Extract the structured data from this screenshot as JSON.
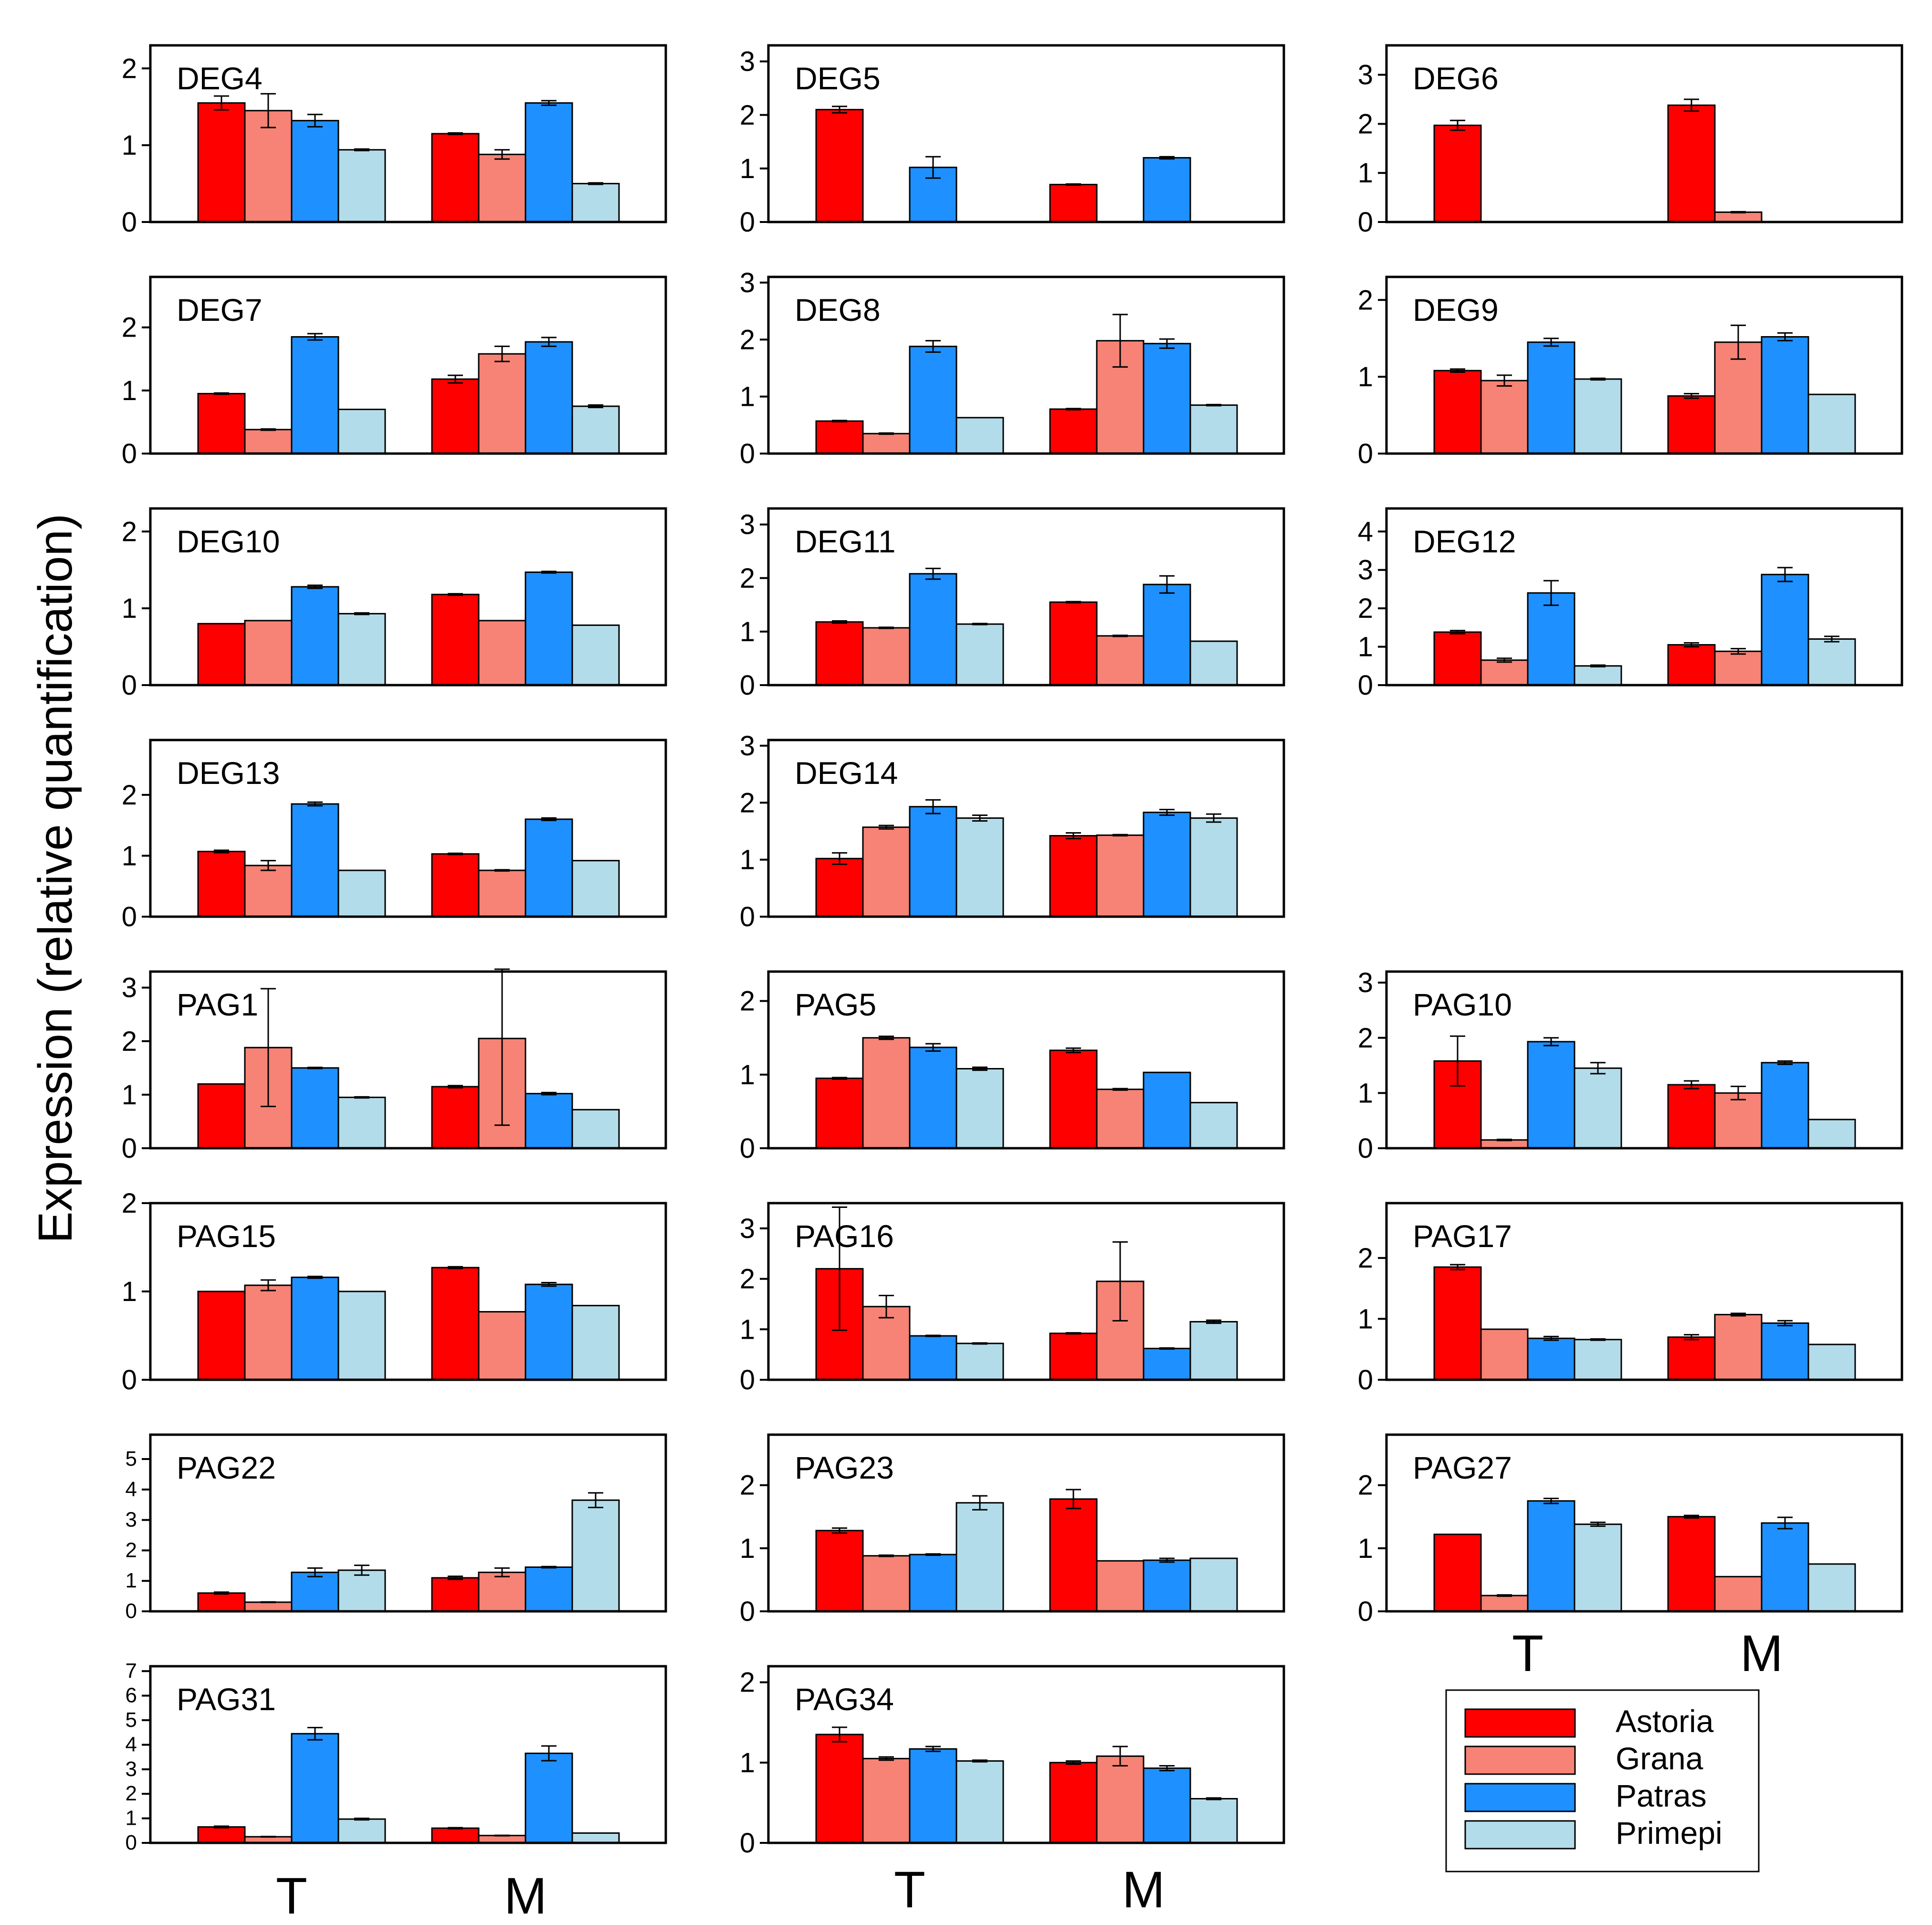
{
  "chart_data": {
    "type": "bar",
    "ylabel": "Expression (relative quantification)",
    "categories": [
      "T",
      "M"
    ],
    "series_names": [
      "Astoria",
      "Grana",
      "Patras",
      "Primepi"
    ],
    "colors": {
      "Astoria": "#ff0000",
      "Grana": "#f68375",
      "Patras": "#1e90ff",
      "Primepi": "#b3dcea"
    },
    "legend": {
      "position": "bottom-right",
      "entries": [
        "Astoria",
        "Grana",
        "Patras",
        "Primepi"
      ]
    },
    "panels": [
      {
        "title": "DEG4",
        "ylim": [
          0,
          2.3
        ],
        "yticks": [
          0,
          1,
          2
        ],
        "values": {
          "T": [
            1.55,
            1.45,
            1.32,
            0.94
          ],
          "M": [
            1.15,
            0.88,
            1.55,
            0.5
          ]
        },
        "errors": {
          "T": [
            0.09,
            0.22,
            0.08,
            0.01
          ],
          "M": [
            0.01,
            0.06,
            0.03,
            0.01
          ]
        }
      },
      {
        "title": "DEG5",
        "ylim": [
          0,
          3.3
        ],
        "yticks": [
          0,
          1,
          2,
          3
        ],
        "values": {
          "T": [
            2.1,
            0,
            1.02,
            0
          ],
          "M": [
            0.7,
            0,
            1.2,
            0
          ]
        },
        "errors": {
          "T": [
            0.06,
            0,
            0.2,
            0
          ],
          "M": [
            0.01,
            0,
            0.02,
            0
          ]
        }
      },
      {
        "title": "DEG6",
        "ylim": [
          0,
          3.6
        ],
        "yticks": [
          0,
          1,
          2,
          3
        ],
        "values": {
          "T": [
            1.97,
            0,
            0,
            0
          ],
          "M": [
            2.38,
            0.2,
            0,
            0
          ]
        },
        "errors": {
          "T": [
            0.1,
            0,
            0,
            0
          ],
          "M": [
            0.12,
            0.01,
            0,
            0
          ]
        }
      },
      {
        "title": "DEG7",
        "ylim": [
          0,
          2.8
        ],
        "yticks": [
          0,
          1,
          2
        ],
        "values": {
          "T": [
            0.95,
            0.38,
            1.85,
            0.7
          ],
          "M": [
            1.18,
            1.58,
            1.77,
            0.75
          ]
        },
        "errors": {
          "T": [
            0.01,
            0.01,
            0.05,
            0
          ],
          "M": [
            0.06,
            0.12,
            0.07,
            0.02
          ]
        }
      },
      {
        "title": "DEG8",
        "ylim": [
          0,
          3.1
        ],
        "yticks": [
          0,
          1,
          2,
          3
        ],
        "values": {
          "T": [
            0.57,
            0.35,
            1.88,
            0.63
          ],
          "M": [
            0.78,
            1.98,
            1.93,
            0.85
          ]
        },
        "errors": {
          "T": [
            0.01,
            0.01,
            0.1,
            0
          ],
          "M": [
            0.01,
            0.46,
            0.08,
            0.01
          ]
        }
      },
      {
        "title": "DEG9",
        "ylim": [
          0,
          2.3
        ],
        "yticks": [
          0,
          1,
          2
        ],
        "values": {
          "T": [
            1.08,
            0.95,
            1.45,
            0.97
          ],
          "M": [
            0.75,
            1.45,
            1.52,
            0.77
          ]
        },
        "errors": {
          "T": [
            0.02,
            0.07,
            0.05,
            0.01
          ],
          "M": [
            0.03,
            0.22,
            0.05,
            0
          ]
        }
      },
      {
        "title": "DEG10",
        "ylim": [
          0,
          2.3
        ],
        "yticks": [
          0,
          1,
          2
        ],
        "values": {
          "T": [
            0.8,
            0.84,
            1.28,
            0.93
          ],
          "M": [
            1.18,
            0.84,
            1.47,
            0.78
          ]
        },
        "errors": {
          "T": [
            0,
            0,
            0.02,
            0.01
          ],
          "M": [
            0.01,
            0,
            0.01,
            0
          ]
        }
      },
      {
        "title": "DEG11",
        "ylim": [
          0,
          3.3
        ],
        "yticks": [
          0,
          1,
          2,
          3
        ],
        "values": {
          "T": [
            1.18,
            1.07,
            2.08,
            1.14
          ],
          "M": [
            1.55,
            0.92,
            1.88,
            0.82
          ]
        },
        "errors": {
          "T": [
            0.02,
            0.01,
            0.1,
            0.01
          ],
          "M": [
            0.01,
            0.01,
            0.16,
            0
          ]
        }
      },
      {
        "title": "DEG12",
        "ylim": [
          0,
          4.6
        ],
        "yticks": [
          0,
          1,
          2,
          3,
          4
        ],
        "values": {
          "T": [
            1.38,
            0.65,
            2.4,
            0.5
          ],
          "M": [
            1.05,
            0.88,
            2.88,
            1.2
          ]
        },
        "errors": {
          "T": [
            0.04,
            0.05,
            0.32,
            0.02
          ],
          "M": [
            0.05,
            0.07,
            0.18,
            0.07
          ]
        }
      },
      {
        "title": "DEG13",
        "ylim": [
          0,
          2.9
        ],
        "yticks": [
          0,
          1,
          2
        ],
        "values": {
          "T": [
            1.07,
            0.84,
            1.85,
            0.76
          ],
          "M": [
            1.03,
            0.76,
            1.6,
            0.92
          ]
        },
        "errors": {
          "T": [
            0.02,
            0.08,
            0.03,
            0
          ],
          "M": [
            0.01,
            0.01,
            0.02,
            0
          ]
        }
      },
      {
        "title": "DEG14",
        "ylim": [
          0,
          3.1
        ],
        "yticks": [
          0,
          1,
          2,
          3
        ],
        "values": {
          "T": [
            1.02,
            1.57,
            1.93,
            1.73
          ],
          "M": [
            1.42,
            1.43,
            1.83,
            1.73
          ]
        },
        "errors": {
          "T": [
            0.1,
            0.03,
            0.12,
            0.05
          ],
          "M": [
            0.05,
            0.01,
            0.05,
            0.07
          ]
        }
      },
      {
        "title": "PAG1",
        "ylim": [
          0,
          3.3
        ],
        "yticks": [
          0,
          1,
          2,
          3
        ],
        "values": {
          "T": [
            1.2,
            1.88,
            1.5,
            0.95
          ],
          "M": [
            1.15,
            2.05,
            1.02,
            0.72
          ]
        },
        "errors": {
          "T": [
            0,
            1.1,
            0.01,
            0.01
          ],
          "M": [
            0.02,
            1.62,
            0.02,
            0
          ]
        }
      },
      {
        "title": "PAG5",
        "ylim": [
          0,
          2.4
        ],
        "yticks": [
          0,
          1,
          2
        ],
        "values": {
          "T": [
            0.95,
            1.5,
            1.37,
            1.08
          ],
          "M": [
            1.33,
            0.8,
            1.03,
            0.62
          ]
        },
        "errors": {
          "T": [
            0.01,
            0.02,
            0.05,
            0.02
          ],
          "M": [
            0.03,
            0.01,
            0,
            0
          ]
        }
      },
      {
        "title": "PAG10",
        "ylim": [
          0,
          3.2
        ],
        "yticks": [
          0,
          1,
          2,
          3
        ],
        "values": {
          "T": [
            1.58,
            0.15,
            1.93,
            1.45
          ],
          "M": [
            1.15,
            1.0,
            1.55,
            0.52
          ]
        },
        "errors": {
          "T": [
            0.45,
            0.01,
            0.07,
            0.1
          ],
          "M": [
            0.07,
            0.12,
            0.03,
            0
          ]
        }
      },
      {
        "title": "PAG15",
        "ylim": [
          0,
          2.0
        ],
        "yticks": [
          0,
          1,
          2
        ],
        "values": {
          "T": [
            1.0,
            1.07,
            1.16,
            1.0
          ],
          "M": [
            1.27,
            0.77,
            1.08,
            0.84
          ]
        },
        "errors": {
          "T": [
            0,
            0.06,
            0.01,
            0
          ],
          "M": [
            0.01,
            0,
            0.02,
            0
          ]
        }
      },
      {
        "title": "PAG16",
        "ylim": [
          0,
          3.5
        ],
        "yticks": [
          0,
          1,
          2,
          3
        ],
        "values": {
          "T": [
            2.2,
            1.45,
            0.87,
            0.72
          ],
          "M": [
            0.92,
            1.95,
            0.62,
            1.15
          ]
        },
        "errors": {
          "T": [
            1.22,
            0.22,
            0.01,
            0.01
          ],
          "M": [
            0.01,
            0.78,
            0.01,
            0.03
          ]
        }
      },
      {
        "title": "PAG17",
        "ylim": [
          0,
          2.9
        ],
        "yticks": [
          0,
          1,
          2
        ],
        "values": {
          "T": [
            1.85,
            0.83,
            0.68,
            0.66
          ],
          "M": [
            0.7,
            1.07,
            0.93,
            0.58
          ]
        },
        "errors": {
          "T": [
            0.04,
            0,
            0.03,
            0.01
          ],
          "M": [
            0.04,
            0.02,
            0.04,
            0
          ]
        }
      },
      {
        "title": "PAG22",
        "ylim": [
          0,
          5.8
        ],
        "yticks": [
          0,
          1,
          2,
          3,
          4,
          5
        ],
        "values": {
          "T": [
            0.6,
            0.3,
            1.28,
            1.35
          ],
          "M": [
            1.1,
            1.28,
            1.45,
            3.65
          ]
        },
        "errors": {
          "T": [
            0.03,
            0.01,
            0.14,
            0.16
          ],
          "M": [
            0.05,
            0.14,
            0.02,
            0.24
          ]
        }
      },
      {
        "title": "PAG23",
        "ylim": [
          0,
          2.8
        ],
        "yticks": [
          0,
          1,
          2
        ],
        "values": {
          "T": [
            1.28,
            0.88,
            0.9,
            1.72
          ],
          "M": [
            1.78,
            0.8,
            0.81,
            0.84
          ]
        },
        "errors": {
          "T": [
            0.04,
            0.01,
            0.01,
            0.11
          ],
          "M": [
            0.15,
            0,
            0.03,
            0
          ]
        }
      },
      {
        "title": "PAG27",
        "ylim": [
          0,
          2.8
        ],
        "yticks": [
          0,
          1,
          2
        ],
        "values": {
          "T": [
            1.22,
            0.25,
            1.75,
            1.38
          ],
          "M": [
            1.5,
            0.55,
            1.4,
            0.75
          ]
        },
        "errors": {
          "T": [
            0,
            0.01,
            0.04,
            0.03
          ],
          "M": [
            0.02,
            0,
            0.09,
            0
          ]
        }
      },
      {
        "title": "PAG31",
        "ylim": [
          0,
          7.2
        ],
        "yticks": [
          0,
          1,
          2,
          3,
          4,
          5,
          6,
          7
        ],
        "values": {
          "T": [
            0.65,
            0.25,
            4.45,
            0.97
          ],
          "M": [
            0.6,
            0.3,
            3.65,
            0.4
          ]
        },
        "errors": {
          "T": [
            0.03,
            0.01,
            0.25,
            0.03
          ],
          "M": [
            0.02,
            0.01,
            0.3,
            0
          ]
        }
      },
      {
        "title": "PAG34",
        "ylim": [
          0,
          2.2
        ],
        "yticks": [
          0,
          1,
          2
        ],
        "values": {
          "T": [
            1.35,
            1.05,
            1.17,
            1.02
          ],
          "M": [
            1.0,
            1.08,
            0.93,
            0.55
          ]
        },
        "errors": {
          "T": [
            0.09,
            0.02,
            0.03,
            0.01
          ],
          "M": [
            0.02,
            0.12,
            0.03,
            0.01
          ]
        }
      }
    ]
  }
}
